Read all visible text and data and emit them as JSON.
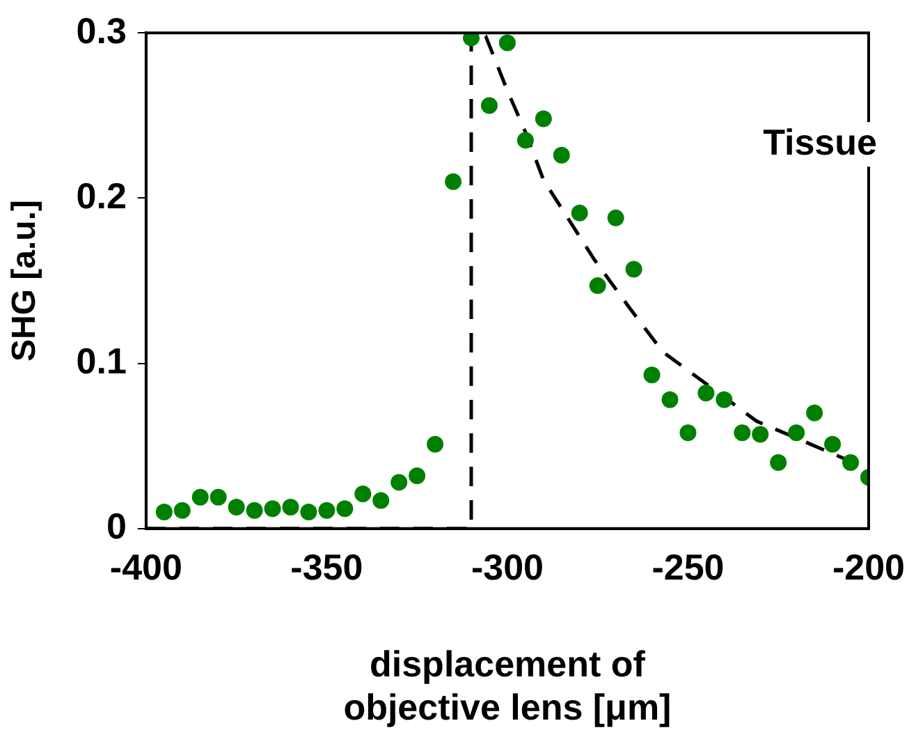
{
  "chart_data": {
    "type": "scatter",
    "xlabel": "displacement of\nobjective lens [μm]",
    "ylabel": "SHG [a.u.]",
    "annotations": [
      "Tissue"
    ],
    "xlim": [
      -400,
      -200
    ],
    "xticks": [
      -400,
      -350,
      -300,
      -250,
      -200
    ],
    "ylim": [
      0,
      0.3
    ],
    "yticks": [
      0,
      0.1,
      0.2,
      0.3
    ],
    "grid": false,
    "legend": false,
    "marker": "circle",
    "series": [
      {
        "color": "#008000",
        "x": [
          -395,
          -390,
          -385,
          -380,
          -375,
          -370,
          -365,
          -360,
          -355,
          -350,
          -345,
          -340,
          -335,
          -330,
          -325,
          -320,
          -315,
          -310,
          -305,
          -300,
          -295,
          -290,
          -285,
          -280,
          -275,
          -270,
          -265,
          -260,
          -255,
          -250,
          -245,
          -240,
          -235,
          -230,
          -225,
          -220,
          -215,
          -210,
          -205,
          -200
        ],
        "values": [
          0.01,
          0.011,
          0.019,
          0.019,
          0.013,
          0.011,
          0.012,
          0.013,
          0.01,
          0.011,
          0.012,
          0.021,
          0.017,
          0.028,
          0.032,
          0.051,
          0.21,
          0.297,
          0.256,
          0.294,
          0.235,
          0.248,
          0.226,
          0.191,
          0.147,
          0.188,
          0.157,
          0.093,
          0.078,
          0.058,
          0.082,
          0.078,
          0.058,
          0.057,
          0.04,
          0.058,
          0.07,
          0.051,
          0.04,
          0.031
        ]
      },
      {
        "type": "line",
        "color": "#000000",
        "line_style": "dashed",
        "marker": "none",
        "x": [
          -400,
          -310,
          -310,
          -306,
          -300,
          -295,
          -290,
          -283,
          -276,
          -266,
          -257,
          -244,
          -231,
          -216,
          -200
        ],
        "values": [
          0,
          0,
          0.3,
          0.298,
          0.265,
          0.24,
          0.211,
          0.187,
          0.163,
          0.133,
          0.107,
          0.086,
          0.065,
          0.051,
          0.036
        ]
      }
    ]
  }
}
